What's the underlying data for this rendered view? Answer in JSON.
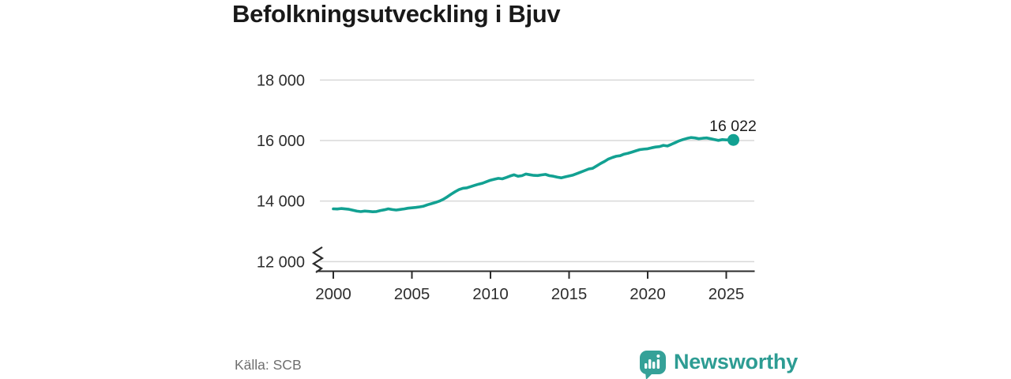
{
  "title": "Befolkningsutveckling i Bjuv",
  "footer": {
    "source": "Källa: SCB",
    "brand": "Newsworthy"
  },
  "colors": {
    "line": "#12a192",
    "dot": "#12a192",
    "grid": "#d8d8d8",
    "axis": "#2b2b2b",
    "tick_label": "#2e2e2e",
    "end_label": "#1b1b1b",
    "title": "#191919",
    "source": "#6f6f6f",
    "brand": "#2d9c93"
  },
  "chart_data": {
    "type": "line",
    "title": "Befolkningsutveckling i Bjuv",
    "xlabel": "",
    "ylabel": "",
    "x_ticks": [
      2000,
      2005,
      2010,
      2015,
      2020,
      2025
    ],
    "y_ticks": [
      12000,
      14000,
      16000,
      18000
    ],
    "y_tick_labels": [
      "12 000",
      "14 000",
      "16 000",
      "18 000"
    ],
    "xlim": [
      1999,
      2026.8
    ],
    "ylim": [
      11700,
      18300
    ],
    "y_axis_break": true,
    "grid": "horizontal",
    "legend": "none",
    "end_label": "16 022",
    "end_value": 16022,
    "source": "SCB",
    "series": [
      {
        "name": "Befolkning i Bjuv",
        "points": [
          [
            2000.0,
            13745
          ],
          [
            2000.25,
            13738
          ],
          [
            2000.5,
            13755
          ],
          [
            2000.75,
            13742
          ],
          [
            2001.0,
            13728
          ],
          [
            2001.25,
            13700
          ],
          [
            2001.5,
            13668
          ],
          [
            2001.75,
            13652
          ],
          [
            2002.0,
            13672
          ],
          [
            2002.25,
            13660
          ],
          [
            2002.5,
            13648
          ],
          [
            2002.75,
            13655
          ],
          [
            2003.0,
            13690
          ],
          [
            2003.25,
            13712
          ],
          [
            2003.5,
            13745
          ],
          [
            2003.75,
            13720
          ],
          [
            2004.0,
            13705
          ],
          [
            2004.25,
            13722
          ],
          [
            2004.5,
            13742
          ],
          [
            2004.75,
            13765
          ],
          [
            2005.0,
            13779
          ],
          [
            2005.25,
            13790
          ],
          [
            2005.5,
            13808
          ],
          [
            2005.75,
            13832
          ],
          [
            2006.0,
            13880
          ],
          [
            2006.25,
            13915
          ],
          [
            2006.5,
            13955
          ],
          [
            2006.75,
            14000
          ],
          [
            2007.0,
            14060
          ],
          [
            2007.25,
            14140
          ],
          [
            2007.5,
            14230
          ],
          [
            2007.75,
            14310
          ],
          [
            2008.0,
            14380
          ],
          [
            2008.25,
            14425
          ],
          [
            2008.5,
            14439
          ],
          [
            2008.75,
            14480
          ],
          [
            2009.0,
            14520
          ],
          [
            2009.25,
            14560
          ],
          [
            2009.5,
            14591
          ],
          [
            2009.75,
            14640
          ],
          [
            2010.0,
            14690
          ],
          [
            2010.25,
            14722
          ],
          [
            2010.5,
            14750
          ],
          [
            2010.75,
            14735
          ],
          [
            2011.0,
            14780
          ],
          [
            2011.25,
            14830
          ],
          [
            2011.5,
            14868
          ],
          [
            2011.75,
            14820
          ],
          [
            2012.0,
            14840
          ],
          [
            2012.25,
            14895
          ],
          [
            2012.5,
            14870
          ],
          [
            2012.75,
            14850
          ],
          [
            2013.0,
            14845
          ],
          [
            2013.25,
            14865
          ],
          [
            2013.5,
            14880
          ],
          [
            2013.75,
            14840
          ],
          [
            2014.0,
            14820
          ],
          [
            2014.25,
            14790
          ],
          [
            2014.5,
            14770
          ],
          [
            2014.75,
            14800
          ],
          [
            2015.0,
            14830
          ],
          [
            2015.25,
            14861
          ],
          [
            2015.5,
            14910
          ],
          [
            2015.75,
            14960
          ],
          [
            2016.0,
            15010
          ],
          [
            2016.25,
            15060
          ],
          [
            2016.5,
            15081
          ],
          [
            2016.75,
            15160
          ],
          [
            2017.0,
            15240
          ],
          [
            2017.25,
            15310
          ],
          [
            2017.5,
            15391
          ],
          [
            2017.75,
            15440
          ],
          [
            2018.0,
            15480
          ],
          [
            2018.25,
            15500
          ],
          [
            2018.5,
            15551
          ],
          [
            2018.75,
            15580
          ],
          [
            2019.0,
            15620
          ],
          [
            2019.25,
            15660
          ],
          [
            2019.5,
            15700
          ],
          [
            2019.75,
            15715
          ],
          [
            2020.0,
            15730
          ],
          [
            2020.25,
            15760
          ],
          [
            2020.5,
            15785
          ],
          [
            2020.75,
            15800
          ],
          [
            2021.0,
            15840
          ],
          [
            2021.25,
            15820
          ],
          [
            2021.5,
            15871
          ],
          [
            2021.75,
            15930
          ],
          [
            2022.0,
            15990
          ],
          [
            2022.25,
            16033
          ],
          [
            2022.5,
            16070
          ],
          [
            2022.75,
            16100
          ],
          [
            2023.0,
            16085
          ],
          [
            2023.25,
            16060
          ],
          [
            2023.5,
            16075
          ],
          [
            2023.75,
            16085
          ],
          [
            2024.0,
            16060
          ],
          [
            2024.25,
            16030
          ],
          [
            2024.5,
            16005
          ],
          [
            2024.75,
            16030
          ],
          [
            2025.0,
            16020
          ],
          [
            2025.25,
            16028
          ],
          [
            2025.45,
            16022
          ]
        ]
      }
    ]
  }
}
